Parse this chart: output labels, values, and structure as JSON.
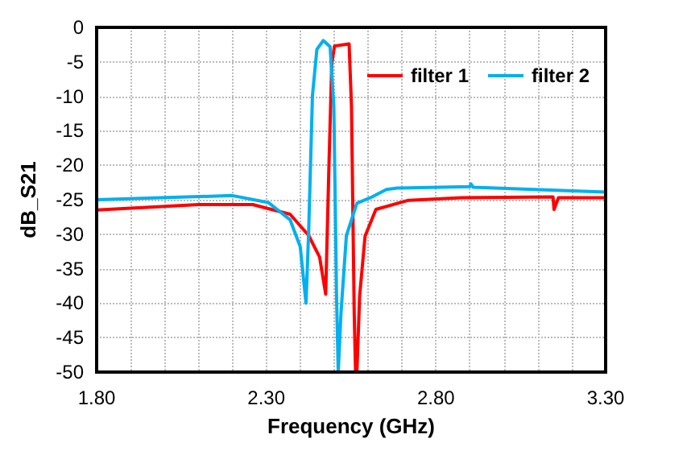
{
  "chart_data": {
    "type": "line",
    "xlabel": "Frequency (GHz)",
    "ylabel": "dB_S21",
    "xlim": [
      1.8,
      3.3
    ],
    "xticks": [
      {
        "value": 1.8,
        "label": "1.80"
      },
      {
        "value": 1.9,
        "label": null
      },
      {
        "value": 2.0,
        "label": null
      },
      {
        "value": 2.1,
        "label": null
      },
      {
        "value": 2.2,
        "label": null
      },
      {
        "value": 2.3,
        "label": "2.30"
      },
      {
        "value": 2.4,
        "label": null
      },
      {
        "value": 2.5,
        "label": null
      },
      {
        "value": 2.6,
        "label": null
      },
      {
        "value": 2.7,
        "label": null
      },
      {
        "value": 2.8,
        "label": "2.80"
      },
      {
        "value": 2.9,
        "label": null
      },
      {
        "value": 3.0,
        "label": null
      },
      {
        "value": 3.1,
        "label": null
      },
      {
        "value": 3.2,
        "label": null
      },
      {
        "value": 3.3,
        "label": "3.30"
      }
    ],
    "ylim": [
      -50,
      0
    ],
    "yticks": [
      -50,
      -45,
      -40,
      -35,
      -30,
      -25,
      -20,
      -15,
      -10,
      -5,
      0
    ],
    "grid": true,
    "legend": "top right",
    "marker": "none",
    "line_style": "solid",
    "series": [
      {
        "name": "filter 1",
        "color": "#ff0000",
        "x": [
          1.8,
          2.1,
          2.26,
          2.37,
          2.425,
          2.457,
          2.475,
          2.485,
          2.493,
          2.501,
          2.544,
          2.551,
          2.559,
          2.563,
          2.567,
          2.575,
          2.591,
          2.623,
          2.717,
          2.876,
          3.145,
          3.148,
          3.161,
          3.3
        ],
        "values": [
          -26.5,
          -25.7,
          -25.7,
          -27.1,
          -30.2,
          -33.3,
          -38.7,
          -19.3,
          -5.2,
          -2.7,
          -2.4,
          -11.4,
          -41.3,
          -50,
          -50,
          -39,
          -30.3,
          -26.4,
          -25.1,
          -24.7,
          -24.6,
          -26.4,
          -24.7,
          -24.7
        ]
      },
      {
        "name": "filter 2",
        "color": "#00b0f0",
        "x": [
          1.8,
          2.2,
          2.306,
          2.37,
          2.4,
          2.417,
          2.425,
          2.436,
          2.449,
          2.468,
          2.488,
          2.499,
          2.507,
          2.512,
          2.52,
          2.536,
          2.567,
          2.607,
          2.654,
          2.686,
          2.9,
          2.903,
          2.91,
          3.3
        ],
        "values": [
          -25.0,
          -24.4,
          -25.4,
          -27.9,
          -31.8,
          -40.0,
          -29.3,
          -9.9,
          -3.2,
          -1.9,
          -2.8,
          -11.4,
          -39,
          -50,
          -41.5,
          -30.2,
          -25.5,
          -24.7,
          -23.5,
          -23.3,
          -23.1,
          -22.7,
          -23.2,
          -23.9
        ]
      }
    ]
  }
}
